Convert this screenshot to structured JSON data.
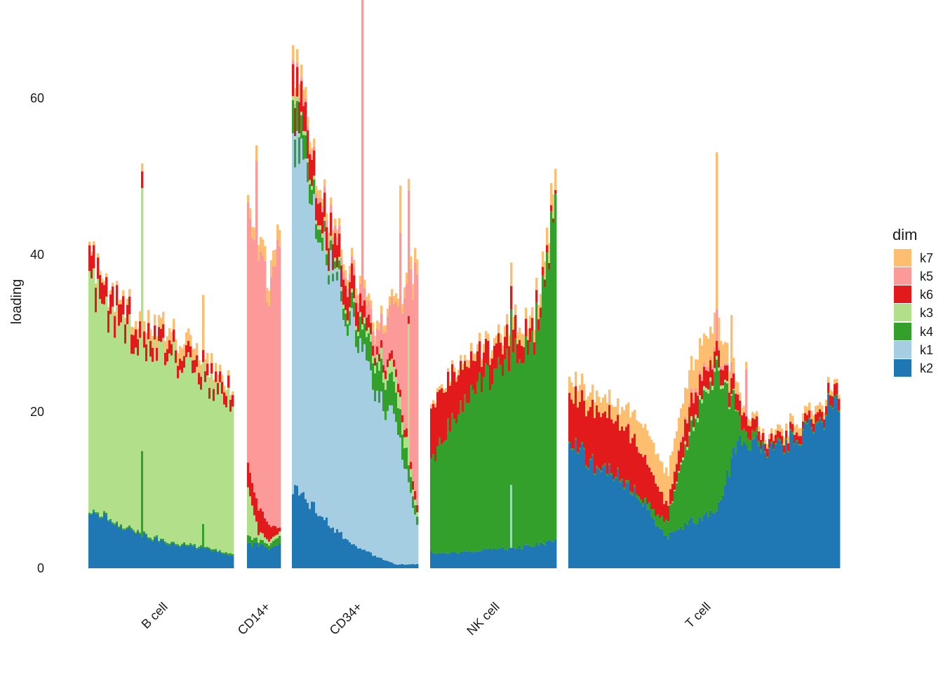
{
  "chart_data": {
    "type": "bar",
    "stacked": true,
    "xlabel": "",
    "ylabel": "loading",
    "ylim": [
      0,
      68
    ],
    "yticks": [
      "0",
      "20",
      "40",
      "60"
    ],
    "grid": false,
    "legend": {
      "title": "dim",
      "position": "right",
      "entries": [
        {
          "name": "k7",
          "color": "#fdbf6f"
        },
        {
          "name": "k5",
          "color": "#fb9a99"
        },
        {
          "name": "k6",
          "color": "#e31a1c"
        },
        {
          "name": "k3",
          "color": "#b2df8a"
        },
        {
          "name": "k4",
          "color": "#33a02c"
        },
        {
          "name": "k1",
          "color": "#a6cee3"
        },
        {
          "name": "k2",
          "color": "#1f78b4"
        }
      ]
    },
    "stack_order": [
      "k2",
      "k1",
      "k4",
      "k3",
      "k6",
      "k5",
      "k7"
    ],
    "groups": [
      {
        "label": "B cell",
        "profile": [
          {
            "k2": 7.5,
            "k1": 0,
            "k4": 0.2,
            "k3": 28.5,
            "k6": 3.0,
            "k5": 0,
            "k7": 0.5
          },
          {
            "k2": 5.5,
            "k1": 0,
            "k4": 0.2,
            "k3": 25.0,
            "k6": 2.5,
            "k5": 0,
            "k7": 0.5
          },
          {
            "k2": 4.0,
            "k1": 0,
            "k4": 0.2,
            "k3": 24.0,
            "k6": 2.0,
            "k5": 0,
            "k7": 1.5
          },
          {
            "k2": 3.0,
            "k1": 0,
            "k4": 0.2,
            "k3": 23.5,
            "k6": 1.5,
            "k5": 0,
            "k7": 1.5
          },
          {
            "k2": 2.5,
            "k1": 0,
            "k4": 0.2,
            "k3": 21.0,
            "k6": 1.5,
            "k5": 0,
            "k7": 1.5
          },
          {
            "k2": 1.5,
            "k1": 0,
            "k4": 0.2,
            "k3": 19.5,
            "k6": 1.5,
            "k5": 0,
            "k7": 0.5
          }
        ]
      },
      {
        "label": "CD14+",
        "profile": [
          {
            "k2": 3.0,
            "k1": 0,
            "k4": 1.0,
            "k3": 6.0,
            "k6": 3.0,
            "k5": 34.0,
            "k7": 1.0
          },
          {
            "k2": 3.0,
            "k1": 0,
            "k4": 0.5,
            "k3": 1.0,
            "k6": 3.0,
            "k5": 31.0,
            "k7": 2.0
          },
          {
            "k2": 2.5,
            "k1": 0,
            "k4": 0.5,
            "k3": 0.5,
            "k6": 2.0,
            "k5": 30.0,
            "k7": 2.0
          },
          {
            "k2": 3.0,
            "k1": 0,
            "k4": 1.0,
            "k3": 0.5,
            "k6": 0.5,
            "k5": 36.0,
            "k7": 2.0
          }
        ]
      },
      {
        "label": "CD34+",
        "profile": [
          {
            "k2": 10.0,
            "k1": 45.0,
            "k4": 4.0,
            "k3": 0.5,
            "k6": 4.0,
            "k5": 0.5,
            "k7": 2.0
          },
          {
            "k2": 8.0,
            "k1": 36.0,
            "k4": 2.0,
            "k3": 0.5,
            "k6": 3.0,
            "k5": 0.5,
            "k7": 1.0
          },
          {
            "k2": 5.0,
            "k1": 32.0,
            "k4": 1.0,
            "k3": 0.5,
            "k6": 3.0,
            "k5": 1.0,
            "k7": 1.0
          },
          {
            "k2": 3.0,
            "k1": 27.0,
            "k4": 2.0,
            "k3": 0.5,
            "k6": 3.0,
            "k5": 1.0,
            "k7": 1.0
          },
          {
            "k2": 1.5,
            "k1": 20.0,
            "k4": 4.0,
            "k3": 1.0,
            "k6": 1.0,
            "k5": 2.0,
            "k7": 1.0
          },
          {
            "k2": 0.5,
            "k1": 18.0,
            "k4": 4.0,
            "k3": 2.0,
            "k6": 1.0,
            "k5": 8.0,
            "k7": 1.0
          },
          {
            "k2": 0.5,
            "k1": 5.0,
            "k4": 1.0,
            "k3": 0.5,
            "k6": 1.0,
            "k5": 30.0,
            "k7": 2.0
          }
        ]
      },
      {
        "label": "NK cell",
        "profile": [
          {
            "k2": 2.0,
            "k1": 0,
            "k4": 12.0,
            "k3": 0,
            "k6": 7.0,
            "k5": 0,
            "k7": 0.5
          },
          {
            "k2": 2.0,
            "k1": 0,
            "k4": 17.0,
            "k3": 0,
            "k6": 6.0,
            "k5": 0,
            "k7": 0.5
          },
          {
            "k2": 2.0,
            "k1": 0,
            "k4": 20.0,
            "k3": 0,
            "k6": 4.0,
            "k5": 0,
            "k7": 1.0
          },
          {
            "k2": 2.5,
            "k1": 0,
            "k4": 22.5,
            "k3": 0,
            "k6": 3.0,
            "k5": 0,
            "k7": 1.0
          },
          {
            "k2": 2.5,
            "k1": 0,
            "k4": 24.5,
            "k3": 0,
            "k6": 3.0,
            "k5": 0,
            "k7": 1.5
          },
          {
            "k2": 3.0,
            "k1": 0,
            "k4": 27.0,
            "k3": 0,
            "k6": 1.5,
            "k5": 0,
            "k7": 1.5
          },
          {
            "k2": 3.5,
            "k1": 0,
            "k4": 42.0,
            "k3": 0,
            "k6": 0.5,
            "k5": 0,
            "k7": 3.0
          }
        ]
      },
      {
        "label": "T cell",
        "profile": [
          {
            "k2": 16.0,
            "k1": 0,
            "k4": 0.2,
            "k3": 0,
            "k6": 6.0,
            "k5": 0,
            "k7": 2.0
          },
          {
            "k2": 13.0,
            "k1": 0,
            "k4": 0.2,
            "k3": 0,
            "k6": 7.0,
            "k5": 0,
            "k7": 2.0
          },
          {
            "k2": 12.0,
            "k1": 0,
            "k4": 0.2,
            "k3": 0,
            "k6": 7.0,
            "k5": 0,
            "k7": 2.0
          },
          {
            "k2": 8.0,
            "k1": 0,
            "k4": 0.5,
            "k3": 0,
            "k6": 6.0,
            "k5": 0,
            "k7": 4.0
          },
          {
            "k2": 4.0,
            "k1": 0,
            "k4": 2.0,
            "k3": 0,
            "k6": 2.0,
            "k5": 0,
            "k7": 4.0
          },
          {
            "k2": 6.0,
            "k1": 0,
            "k4": 12.0,
            "k3": 0.5,
            "k6": 3.0,
            "k5": 0.5,
            "k7": 4.0
          },
          {
            "k2": 7.0,
            "k1": 0,
            "k4": 18.0,
            "k3": 0.5,
            "k6": 2.0,
            "k5": 0.5,
            "k7": 4.0
          },
          {
            "k2": 17.0,
            "k1": 0,
            "k4": 2.0,
            "k3": 0,
            "k6": 2.0,
            "k5": 0,
            "k7": 1.0
          },
          {
            "k2": 15.0,
            "k1": 0,
            "k4": 0.2,
            "k3": 0,
            "k6": 1.0,
            "k5": 0,
            "k7": 0.5
          },
          {
            "k2": 16.0,
            "k1": 0,
            "k4": 0.2,
            "k3": 0,
            "k6": 1.0,
            "k5": 0,
            "k7": 1.0
          },
          {
            "k2": 18.0,
            "k1": 0,
            "k4": 0.2,
            "k3": 0,
            "k6": 1.0,
            "k5": 0,
            "k7": 1.0
          },
          {
            "k2": 22.0,
            "k1": 0,
            "k4": 0.2,
            "k3": 0,
            "k6": 1.5,
            "k5": 0,
            "k7": 0.5
          }
        ]
      }
    ],
    "spikes": [
      {
        "group": "B cell",
        "at": 0.37,
        "k3": 33.5,
        "k7": 1.0,
        "k4": 11.0
      },
      {
        "group": "B cell",
        "at": 0.8,
        "k7": 7.0,
        "k4": 3.0
      },
      {
        "group": "CD14+",
        "at": 0.25,
        "k5": 43.0
      },
      {
        "group": "CD34+",
        "at": 0.56,
        "k5": 44.0,
        "k7": 1.0
      },
      {
        "group": "CD34+",
        "at": 0.87,
        "k5": 20.0,
        "k7": 6.0
      },
      {
        "group": "CD34+",
        "at": 0.93,
        "k3": 18.0,
        "k5": 16.0
      },
      {
        "group": "NK cell",
        "at": 0.65,
        "k1": 8.0,
        "k7": 3.0,
        "k6": 3.0
      },
      {
        "group": "T cell",
        "at": 0.55,
        "k7": 20.0,
        "k5": 4.0
      },
      {
        "group": "T cell",
        "at": 0.6,
        "k7": 6.0,
        "k5": 2.0
      },
      {
        "group": "T cell",
        "at": 0.66,
        "k5": 6.0
      }
    ]
  }
}
